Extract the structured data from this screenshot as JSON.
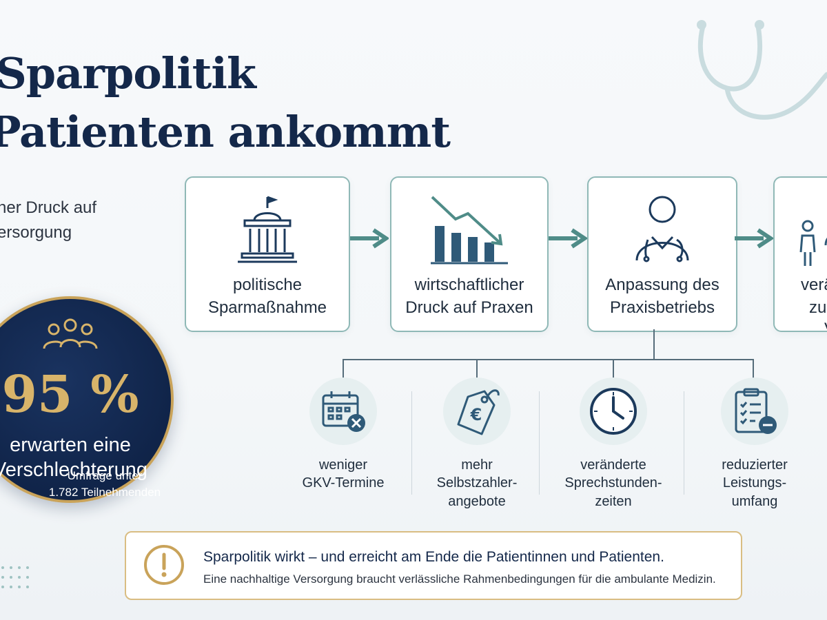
{
  "title": {
    "line1": "Sparpolitik",
    "line2": "Patienten ankommt"
  },
  "subtitle": {
    "line1": "her Druck auf",
    "line2": "ersorgung"
  },
  "stat": {
    "value": "95 %",
    "label_line1": "erwarten eine",
    "label_line2": "Verschlechterung",
    "note_line1": "Umfrage unter",
    "note_line2": "1.782 Teilnehmenden",
    "icon": "people-group-icon"
  },
  "flow": [
    {
      "icon": "government-building-icon",
      "line1": "politische",
      "line2": "Sparmaßnahme"
    },
    {
      "icon": "declining-chart-icon",
      "line1": "wirtschaftlicher",
      "line2": "Druck auf Praxen"
    },
    {
      "icon": "doctor-icon",
      "line1": "Anpassung des",
      "line2": "Praxisbetriebs"
    },
    {
      "icon": "patients-icon",
      "line1": "verän",
      "line2": "zu",
      "line3": "V"
    }
  ],
  "consequences": [
    {
      "icon": "calendar-cancel-icon",
      "line1": "weniger",
      "line2": "GKV-Termine"
    },
    {
      "icon": "euro-price-tag-icon",
      "line1": "mehr",
      "line2": "Selbstzahler-",
      "line3": "angebote"
    },
    {
      "icon": "clock-icon",
      "line1": "veränderte",
      "line2": "Sprechstunden-",
      "line3": "zeiten"
    },
    {
      "icon": "clipboard-minus-icon",
      "line1": "reduzierter",
      "line2": "Leistungs-",
      "line3": "umfang"
    }
  ],
  "callout": {
    "icon": "exclamation-icon",
    "headline": "Sparpolitik wirkt – und erreicht am Ende die Patientinnen und Patienten.",
    "text": "Eine nachhaltige Versorgung braucht verlässliche Rahmenbedingungen für die ambulante Medizin."
  },
  "colors": {
    "navy": "#14284a",
    "teal": "#4f8c88",
    "gold": "#c9a35a",
    "box_border": "#8fb8b6"
  }
}
